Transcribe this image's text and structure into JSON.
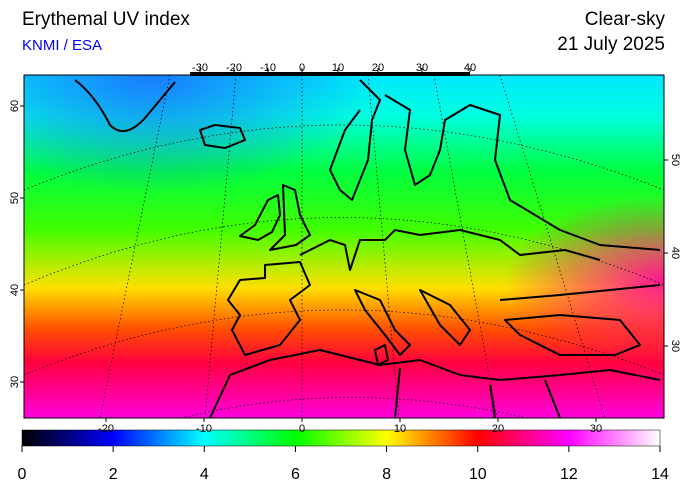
{
  "header": {
    "title": "Erythemal UV index",
    "source": "KNMI / ESA",
    "condition": "Clear-sky",
    "date": "21 July 2025"
  },
  "map": {
    "top_lon_ticks": [
      -30,
      -20,
      -10,
      0,
      10,
      20,
      30,
      40
    ],
    "bottom_lon_ticks": [
      -20,
      -10,
      0,
      10,
      20,
      30
    ],
    "left_lat_ticks": [
      60,
      50,
      40,
      30
    ],
    "right_lat_ticks": [
      50,
      40,
      30
    ]
  },
  "colorbar": {
    "range": [
      0,
      14
    ],
    "ticks": [
      0,
      2,
      4,
      6,
      8,
      10,
      12,
      14
    ],
    "colors": [
      "#000000",
      "#0000ff",
      "#00ffff",
      "#00ff00",
      "#ffff00",
      "#ff0000",
      "#ff00ff",
      "#ffffff"
    ]
  }
}
